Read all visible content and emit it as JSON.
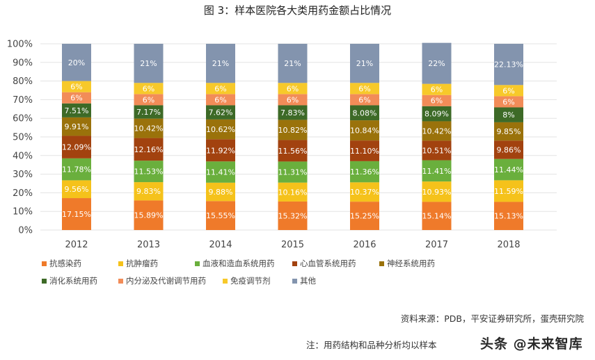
{
  "chart_data": {
    "type": "bar",
    "stacked": true,
    "title": "图  3：样本医院各大类用药金额占比情况",
    "categories": [
      "2012",
      "2013",
      "2014",
      "2015",
      "2016",
      "2017",
      "2018"
    ],
    "ylim": [
      0,
      100
    ],
    "yticks": [
      "0%",
      "10%",
      "20%",
      "30%",
      "40%",
      "50%",
      "60%",
      "70%",
      "80%",
      "90%",
      "100%"
    ],
    "grid": true,
    "legend_position": "bottom",
    "series": [
      {
        "name": "抗感染药",
        "color": "#ef7a2a",
        "values": [
          17.15,
          15.89,
          15.55,
          15.32,
          15.25,
          15.14,
          15.13
        ],
        "labels": [
          "17.15%",
          "15.89%",
          "15.55%",
          "15.32%",
          "15.25%",
          "15.14%",
          "15.13%"
        ]
      },
      {
        "name": "抗肿瘤药",
        "color": "#f5c21b",
        "values": [
          9.56,
          9.83,
          9.88,
          10.16,
          10.37,
          10.93,
          11.59
        ],
        "labels": [
          "9.56%",
          "9.83%",
          "9.88%",
          "10.16%",
          "10.37%",
          "10.93%",
          "11.59%"
        ]
      },
      {
        "name": "血液和造血系统用药",
        "color": "#6aaf3d",
        "values": [
          11.78,
          11.53,
          11.41,
          11.31,
          11.36,
          11.41,
          11.44
        ],
        "labels": [
          "11.78%",
          "11.53%",
          "11.41%",
          "11.31%",
          "11.36%",
          "11.41%",
          "11.44%"
        ]
      },
      {
        "name": "心血管系统用药",
        "color": "#a2420f",
        "values": [
          12.09,
          12.16,
          11.92,
          11.56,
          11.1,
          10.51,
          9.86
        ],
        "labels": [
          "12.09%",
          "12.16%",
          "11.92%",
          "11.56%",
          "11.10%",
          "10.51%",
          "9.86%"
        ]
      },
      {
        "name": "神经系统用药",
        "color": "#9a720b",
        "values": [
          9.91,
          10.42,
          10.62,
          10.82,
          10.84,
          10.42,
          9.85
        ],
        "labels": [
          "9.91%",
          "10.42%",
          "10.62%",
          "10.82%",
          "10.84%",
          "10.42%",
          "9.85%"
        ]
      },
      {
        "name": "消化系统用药",
        "color": "#3d6a27",
        "values": [
          7.51,
          7.17,
          7.62,
          7.83,
          8.08,
          8.09,
          8
        ],
        "labels": [
          "7.51%",
          "7.17%",
          "7.62%",
          "7.83%",
          "8.08%",
          "8.09%",
          "8%"
        ]
      },
      {
        "name": "内分泌及代谢调节用药",
        "color": "#f28c58",
        "values": [
          6,
          6,
          6,
          6,
          6,
          6,
          6
        ],
        "labels": [
          "6%",
          "6%",
          "6%",
          "6%",
          "6%",
          "6%",
          "6%"
        ]
      },
      {
        "name": "免疫调节剂",
        "color": "#f7c92a",
        "values": [
          6,
          6,
          6,
          6,
          6,
          6,
          6
        ],
        "labels": [
          "6%",
          "6%",
          "6%",
          "6%",
          "6%",
          "6%",
          "6%"
        ]
      },
      {
        "name": "其他",
        "color": "#8394ae",
        "values": [
          20,
          21,
          21,
          21,
          21,
          22,
          22.13
        ],
        "labels": [
          "20%",
          "21%",
          "21%",
          "21%",
          "21%",
          "22%",
          "22.13%"
        ]
      }
    ]
  },
  "footer": {
    "source": "资料来源：PDB，平安证券研究所，蛋壳研究院",
    "note": "注：用药结构和品种分析均以样本",
    "watermark": "头条 @未来智库"
  }
}
